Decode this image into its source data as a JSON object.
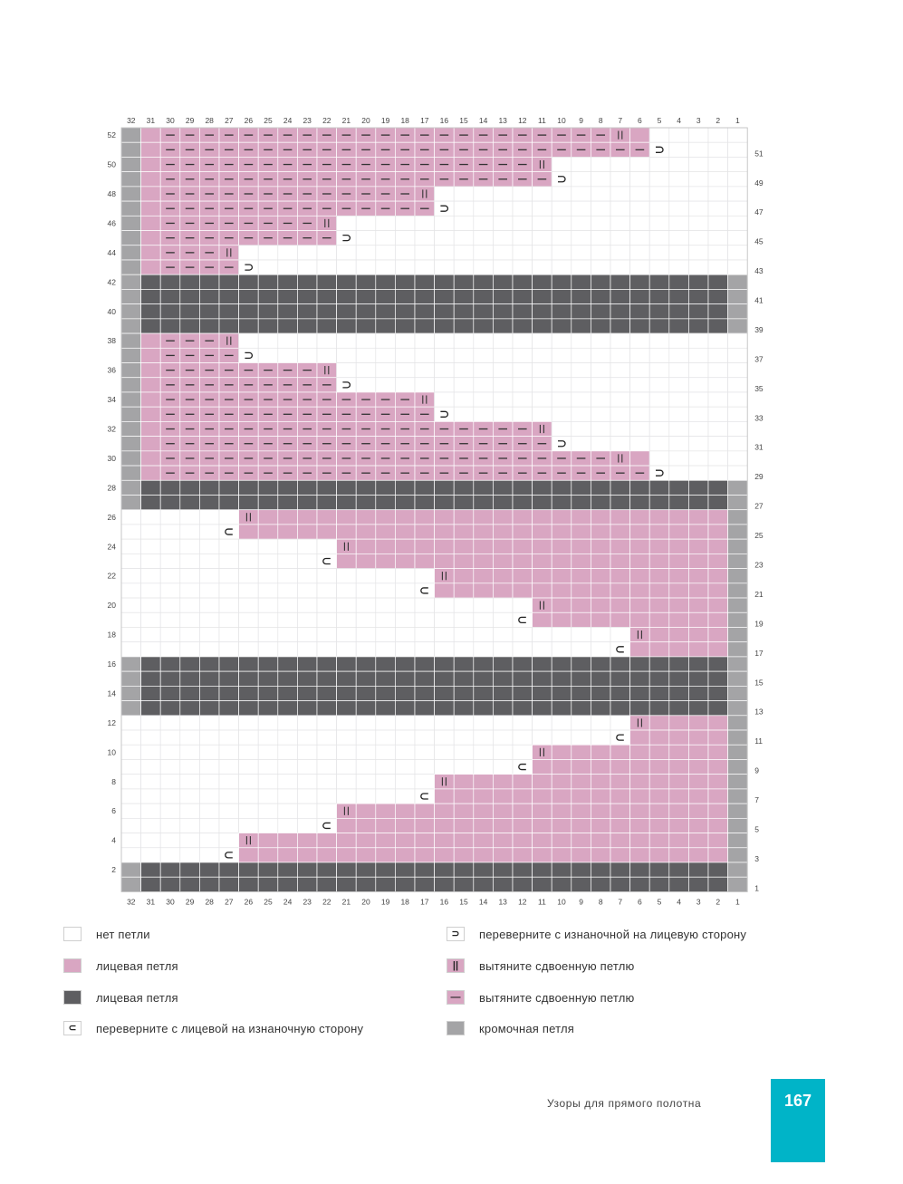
{
  "colors": {
    "empty": "#ffffff",
    "pink": "#d9a6c2",
    "dark": "#5e5e61",
    "edge": "#a4a4a6",
    "grid": "#e4e4e6",
    "accent": "#00b4c8"
  },
  "legend": [
    {
      "key": "empty",
      "symbol": "",
      "color": "#ffffff",
      "label": "нет петли"
    },
    {
      "key": "pink",
      "symbol": "",
      "color": "#d9a6c2",
      "label": "лицевая петля"
    },
    {
      "key": "dark",
      "symbol": "",
      "color": "#5e5e61",
      "label": "лицевая петля"
    },
    {
      "key": "turn-rs-ws",
      "symbol": "⊂",
      "color": "#ffffff",
      "label": "переверните с лицевой на изнаночную сторону"
    },
    {
      "key": "turn-ws-rs",
      "symbol": "⊃",
      "color": "#ffffff",
      "label": "переверните с изнаночной на лицевую сторону"
    },
    {
      "key": "double-rs",
      "symbol": "||",
      "color": "#d9a6c2",
      "label": "вытяните сдвоенную петлю"
    },
    {
      "key": "double-ws",
      "symbol": "—",
      "color": "#d9a6c2",
      "label": "вытяните сдвоенную петлю"
    },
    {
      "key": "edge",
      "symbol": "",
      "color": "#a4a4a6",
      "label": "кромочная петля"
    }
  ],
  "footer": {
    "title": "Узоры для прямого полотна",
    "page_number": "167"
  },
  "chart_data": {
    "type": "table",
    "columns": [
      32,
      31,
      30,
      29,
      28,
      27,
      26,
      25,
      24,
      23,
      22,
      21,
      20,
      19,
      18,
      17,
      16,
      15,
      14,
      13,
      12,
      11,
      10,
      9,
      8,
      7,
      6,
      5,
      4,
      3,
      2,
      1
    ],
    "row_labels_left": [
      52,
      50,
      48,
      46,
      44,
      42,
      40,
      38,
      36,
      34,
      32,
      30,
      28,
      26,
      24,
      22,
      20,
      18,
      16,
      14,
      12,
      10,
      8,
      6,
      4,
      2
    ],
    "row_labels_right": [
      51,
      49,
      47,
      45,
      43,
      41,
      39,
      37,
      35,
      33,
      31,
      29,
      27,
      25,
      23,
      21,
      19,
      17,
      15,
      13,
      11,
      9,
      7,
      5,
      3,
      1
    ],
    "rows": [
      {
        "row": 52,
        "types": "EPPPPPPPPPPPPPPPPPPPPPPPPPTWWWWW",
        "symbols": "..-----------------------|......"
      },
      {
        "row": 51,
        "types": "EPPPPPPPPPPPPPPPPPPPPPPPPPPWWWWW",
        "symbols": "..-------------------------o...."
      },
      {
        "row": 50,
        "types": "EPPPPPPPPPPPPPPPPPPPPPWWWWWWWWWW",
        "symbols": "..-------------------|.........."
      },
      {
        "row": 49,
        "types": "EPPPPPPPPPPPPPPPPPPPPPWWWWWWWWWW",
        "symbols": "..--------------------o........."
      },
      {
        "row": 48,
        "types": "EPPPPPPPPPPPPPPPWWWWWWWWWWWWWWWW",
        "symbols": "..-------------|................"
      },
      {
        "row": 47,
        "types": "EPPPPPPPPPPPPPPPWWWWWWWWWWWWWWWW",
        "symbols": "..--------------o..............."
      },
      {
        "row": 46,
        "types": "EPPPPPPPPPPWWWWWWWWWWWWWWWWWWWWW",
        "symbols": "..--------|....................."
      },
      {
        "row": 45,
        "types": "EPPPPPPPPPPWWWWWWWWWWWWWWWWWWWWW",
        "symbols": "..---------o...................."
      },
      {
        "row": 44,
        "types": "EPPPPPWWWWWWWWWWWWWWWWWWWWWWWWWW",
        "symbols": "..---|.........................."
      },
      {
        "row": 43,
        "types": "EPPPPPWWWWWWWWWWWWWWWWWWWWWWWWWW",
        "symbols": "..----o........................."
      },
      {
        "row": 42,
        "types": "EDDDDDDDDDDDDDDDDDDDDDDDDDDDDDDE",
        "symbols": "................................"
      },
      {
        "row": 41,
        "types": "EDDDDDDDDDDDDDDDDDDDDDDDDDDDDDDE",
        "symbols": "................................"
      },
      {
        "row": 40,
        "types": "EDDDDDDDDDDDDDDDDDDDDDDDDDDDDDDE",
        "symbols": "................................"
      },
      {
        "row": 39,
        "types": "EDDDDDDDDDDDDDDDDDDDDDDDDDDDDDDE",
        "symbols": "................................"
      },
      {
        "row": 38,
        "types": "EPPPPPWWWWWWWWWWWWWWWWWWWWWWWWWW",
        "symbols": "..---|.........................."
      },
      {
        "row": 37,
        "types": "EPPPPPWWWWWWWWWWWWWWWWWWWWWWWWWW",
        "symbols": "..----o........................."
      },
      {
        "row": 36,
        "types": "EPPPPPPPPPPWWWWWWWWWWWWWWWWWWWWW",
        "symbols": "..--------|....................."
      },
      {
        "row": 35,
        "types": "EPPPPPPPPPPWWWWWWWWWWWWWWWWWWWWW",
        "symbols": "..---------o...................."
      },
      {
        "row": 34,
        "types": "EPPPPPPPPPPPPPPPWWWWWWWWWWWWWWWW",
        "symbols": "..-------------|................"
      },
      {
        "row": 33,
        "types": "EPPPPPPPPPPPPPPPWWWWWWWWWWWWWWWW",
        "symbols": "..--------------o..............."
      },
      {
        "row": 32,
        "types": "EPPPPPPPPPPPPPPPPPPPPPWWWWWWWWWW",
        "symbols": "..-------------------|.........."
      },
      {
        "row": 31,
        "types": "EPPPPPPPPPPPPPPPPPPPPPWWWWWWWWWW",
        "symbols": "..--------------------o........."
      },
      {
        "row": 30,
        "types": "EPPPPPPPPPPPPPPPPPPPPPPPPPPWWWWW",
        "symbols": "..-----------------------|......"
      },
      {
        "row": 29,
        "types": "EPPPPPPPPPPPPPPPPPPPPPPPPPPWWWWW",
        "symbols": "..-------------------------o...."
      },
      {
        "row": 28,
        "types": "EDDDDDDDDDDDDDDDDDDDDDDDDDDDDDDE",
        "symbols": "................................"
      },
      {
        "row": 27,
        "types": "EDDDDDDDDDDDDDDDDDDDDDDDDDDDDDDE",
        "symbols": "................................"
      },
      {
        "row": 26,
        "types": "WWWWWWPPPPPPPPPPPPPPPPPPPPPPPPPE",
        "symbols": "......|........................."
      },
      {
        "row": 25,
        "types": "WWWWWWPPPPPPPPPPPPPPPPPPPPPPPPPE",
        "symbols": ".....c.........................."
      },
      {
        "row": 24,
        "types": "WWWWWWWWWWWPPPPPPPPPPPPPPPPPPPPE",
        "symbols": "...........|...................."
      },
      {
        "row": 23,
        "types": "WWWWWWWWWWWPPPPPPPPPPPPPPPPPPPPE",
        "symbols": "..........c....................."
      },
      {
        "row": 22,
        "types": "WWWWWWWWWWWWWWWWPPPPPPPPPPPPPPPE",
        "symbols": "................|..............."
      },
      {
        "row": 21,
        "types": "WWWWWWWWWWWWWWWWPPPPPPPPPPPPPPPE",
        "symbols": "...............c................"
      },
      {
        "row": 20,
        "types": "WWWWWWWWWWWWWWWWWWWWWPPPPPPPPPPE",
        "symbols": ".....................|.........."
      },
      {
        "row": 19,
        "types": "WWWWWWWWWWWWWWWWWWWWWPPPPPPPPPPE",
        "symbols": "....................c..........."
      },
      {
        "row": 18,
        "types": "WWWWWWWWWWWWWWWWWWWWWWWWWWPPPPPE",
        "symbols": "..........................|....."
      },
      {
        "row": 17,
        "types": "WWWWWWWWWWWWWWWWWWWWWWWWWWPPPPPE",
        "symbols": ".........................c......"
      },
      {
        "row": 16,
        "types": "EDDDDDDDDDDDDDDDDDDDDDDDDDDDDDDE",
        "symbols": "................................"
      },
      {
        "row": 15,
        "types": "EDDDDDDDDDDDDDDDDDDDDDDDDDDDDDDE",
        "symbols": "................................"
      },
      {
        "row": 14,
        "types": "EDDDDDDDDDDDDDDDDDDDDDDDDDDDDDDE",
        "symbols": "................................"
      },
      {
        "row": 13,
        "types": "EDDDDDDDDDDDDDDDDDDDDDDDDDDDDDDE",
        "symbols": "................................"
      },
      {
        "row": 12,
        "types": "WWWWWWWWWWWWWWWWWWWWWWWWWWPPPPPE",
        "symbols": "..........................|....."
      },
      {
        "row": 11,
        "types": "WWWWWWWWWWWWWWWWWWWWWWWWWWPPPPPE",
        "symbols": ".........................c......"
      },
      {
        "row": 10,
        "types": "WWWWWWWWWWWWWWWWWWWWWPPPPPPPPPPE",
        "symbols": ".....................|.........."
      },
      {
        "row": 9,
        "types": "WWWWWWWWWWWWWWWWWWWWWPPPPPPPPPPE",
        "symbols": "....................c..........."
      },
      {
        "row": 8,
        "types": "WWWWWWWWWWWWWWWWPPPPPPPPPPPPPPPE",
        "symbols": "................|..............."
      },
      {
        "row": 7,
        "types": "WWWWWWWWWWWWWWWWPPPPPPPPPPPPPPPE",
        "symbols": "...............c................"
      },
      {
        "row": 6,
        "types": "WWWWWWWWWWWPPPPPPPPPPPPPPPPPPPPE",
        "symbols": "...........|...................."
      },
      {
        "row": 5,
        "types": "WWWWWWWWWWWPPPPPPPPPPPPPPPPPPPPE",
        "symbols": "..........c....................."
      },
      {
        "row": 4,
        "types": "WWWWWWPPPPPPPPPPPPPPPPPPPPPPPPPE",
        "symbols": "......|........................."
      },
      {
        "row": 3,
        "types": "WWWWWWPPPPPPPPPPPPPPPPPPPPPPPPPE",
        "symbols": ".....c.........................."
      },
      {
        "row": 2,
        "types": "EDDDDDDDDDDDDDDDDDDDDDDDDDDDDDDE",
        "symbols": "................................"
      },
      {
        "row": 1,
        "types": "EDDDDDDDDDDDDDDDDDDDDDDDDDDDDDDE",
        "symbols": "................................"
      }
    ],
    "cell_type_codes": {
      "W": "empty",
      "P": "pink",
      "D": "dark",
      "E": "edge",
      "T": "pink"
    },
    "symbol_codes": {
      ".": "",
      "-": "—",
      "|": "||",
      "o": "⊃",
      "c": "⊂"
    }
  }
}
